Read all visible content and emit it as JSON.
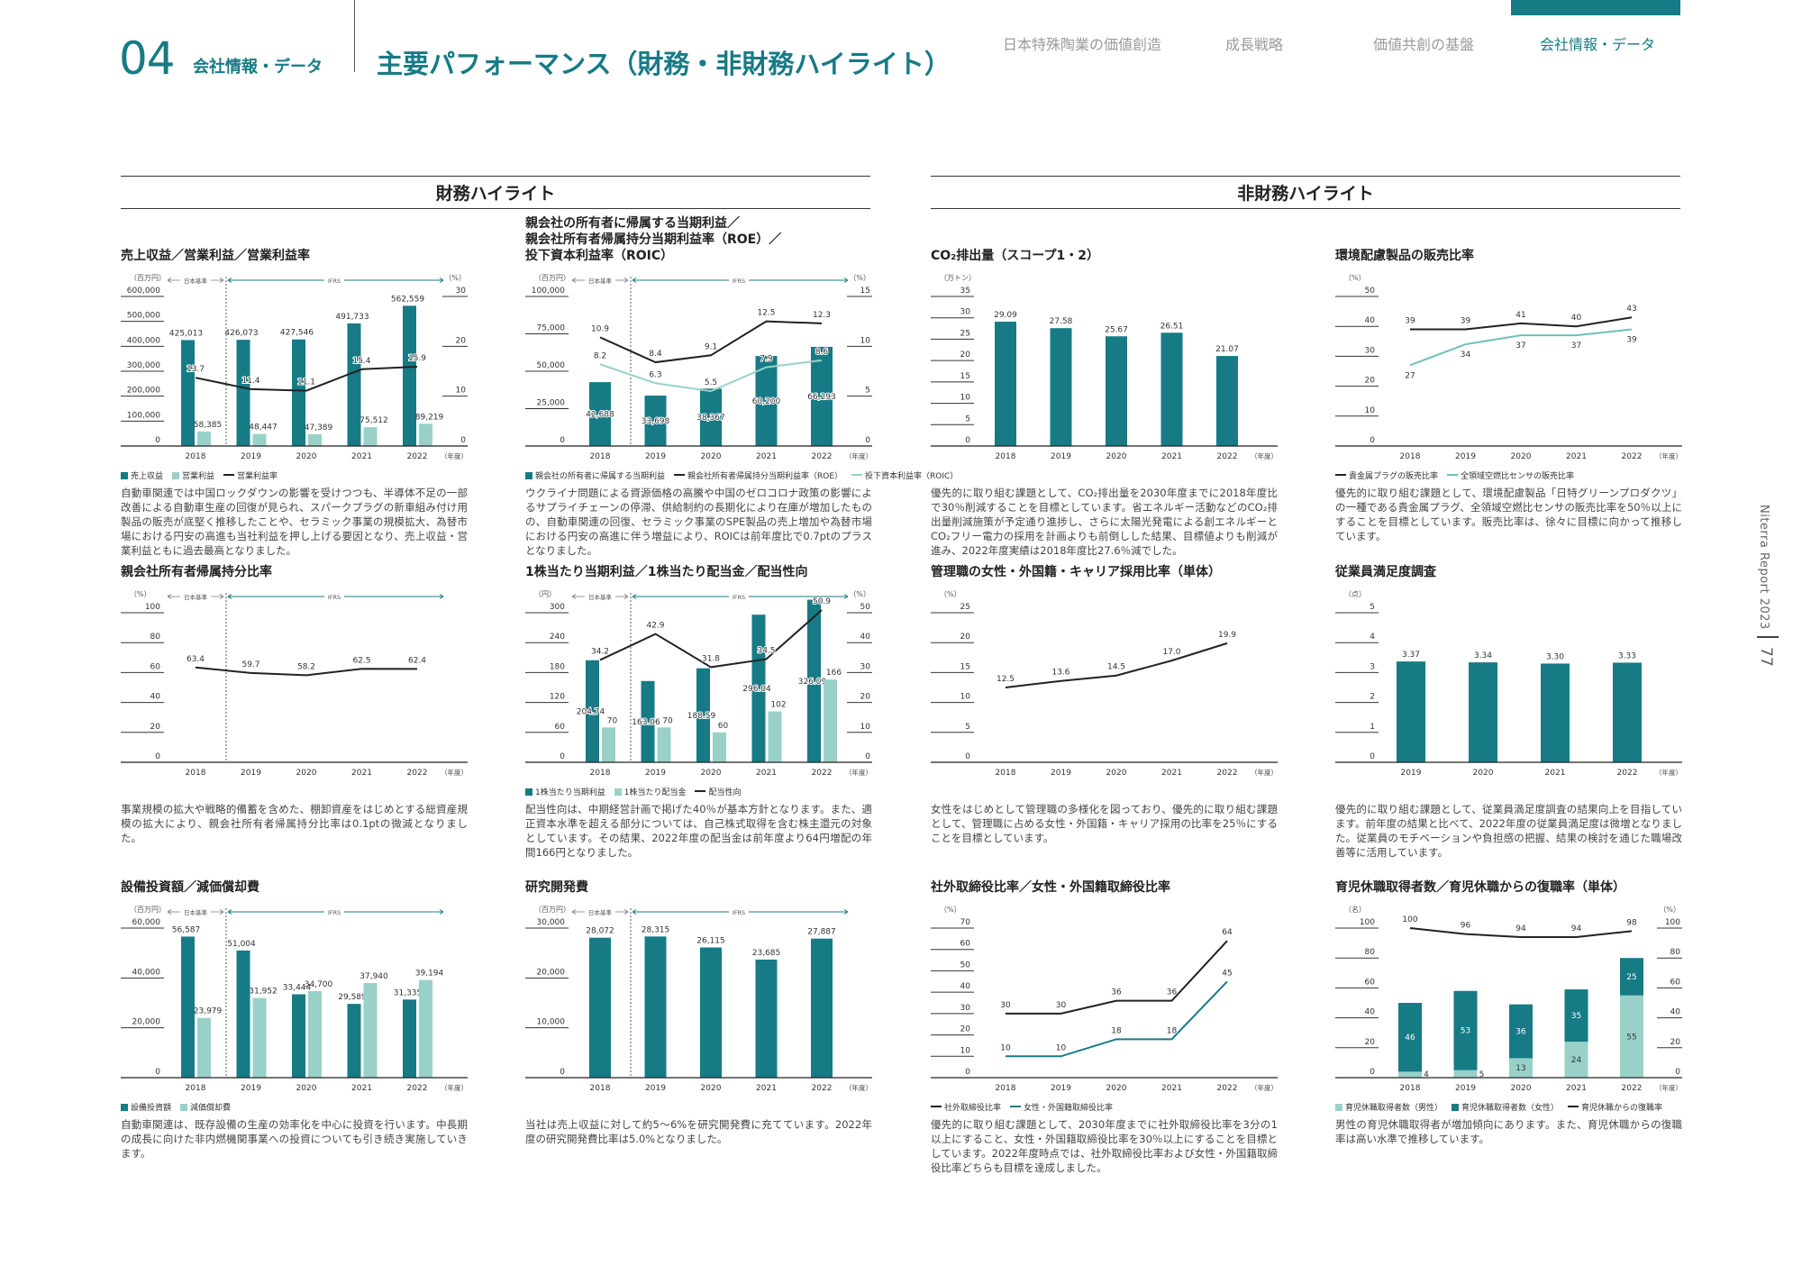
{
  "header": {
    "chapter_number": "04",
    "chapter_label": "会社情報・データ",
    "title": "主要パフォーマンス（財務・非財務ハイライト）"
  },
  "nav": {
    "items": [
      "日本特殊陶業の価値創造",
      "成長戦略",
      "価値共創の基盤",
      "会社情報・データ"
    ],
    "active_index": 3
  },
  "sections": {
    "financial": "財務ハイライト",
    "non_financial": "非財務ハイライト"
  },
  "side": {
    "report": "Niterra Report 2023",
    "page": "77"
  },
  "common": {
    "year_label": "（年度）",
    "jgaap": "日本基準",
    "ifrs": "IFRS"
  },
  "colors": {
    "teal": "#167b85",
    "light": "#99d1c9",
    "black": "#222222",
    "light_line": "#6cc0b5"
  },
  "chart_data": [
    {
      "type": "bar+line",
      "title": "売上収益／営業利益／営業利益率",
      "standards": true,
      "categories": [
        "2018",
        "2019",
        "2020",
        "2021",
        "2022"
      ],
      "left_axis": {
        "unit": "（百万円）",
        "max": 600000,
        "step": 100000
      },
      "right_axis": {
        "unit": "（%）",
        "max": 30,
        "step": 10
      },
      "series": [
        {
          "name": "売上収益",
          "type": "bar",
          "color": "teal",
          "axis": "left",
          "decimals": 0,
          "values": [
            425013,
            426073,
            427546,
            491733,
            562559
          ]
        },
        {
          "name": "営業利益",
          "type": "bar",
          "color": "light",
          "axis": "left",
          "decimals": 0,
          "values": [
            58385,
            48447,
            47389,
            75512,
            89219
          ]
        },
        {
          "name": "営業利益率",
          "type": "line",
          "color": "black",
          "axis": "right",
          "decimals": 1,
          "values": [
            13.7,
            11.4,
            11.1,
            15.4,
            15.9
          ]
        }
      ],
      "description": "自動車関連では中国ロックダウンの影響を受けつつも、半導体不足の一部改善による自動車生産の回復が見られ、スパークプラグの新車組み付け用製品の販売が底堅く推移したことや、セラミック事業の規模拡大、為替市場における円安の高進も当社利益を押し上げる要因となり、売上収益・営業利益ともに過去最高となりました。"
    },
    {
      "type": "bar+line",
      "title": "親会社の所有者に帰属する当期利益／\n親会社所有者帰属持分当期利益率（ROE）／\n投下資本利益率（ROIC）",
      "standards": true,
      "categories": [
        "2018",
        "2019",
        "2020",
        "2021",
        "2022"
      ],
      "left_axis": {
        "unit": "（百万円）",
        "max": 100000,
        "step": 25000
      },
      "right_axis": {
        "unit": "（%）",
        "max": 15,
        "step": 5
      },
      "series": [
        {
          "name": "親会社の所有者に帰属する当期利益",
          "type": "bar",
          "color": "teal",
          "axis": "left",
          "decimals": 0,
          "values": [
            42688,
            33698,
            38367,
            60200,
            66293
          ]
        },
        {
          "name": "親会社所有者帰属持分当期利益率（ROE）",
          "type": "line",
          "color": "black",
          "axis": "right",
          "decimals": 1,
          "values": [
            10.9,
            8.4,
            9.1,
            12.5,
            12.3
          ]
        },
        {
          "name": "投下資本利益率（ROIC）",
          "type": "line",
          "color": "light",
          "axis": "right",
          "decimals": 1,
          "values": [
            8.2,
            6.3,
            5.5,
            7.9,
            8.6
          ]
        }
      ],
      "description": "ウクライナ問題による資源価格の高騰や中国のゼロコロナ政策の影響によるサプライチェーンの停滞、供給制約の長期化により在庫が増加したものの、自動車関連の回復、セラミック事業のSPE製品の売上増加や為替市場における円安の高進に伴う増益により、ROICは前年度比で0.7ptのプラスとなりました。"
    },
    {
      "type": "bar",
      "title": "CO₂排出量（スコープ1・2）",
      "standards": false,
      "categories": [
        "2018",
        "2019",
        "2020",
        "2021",
        "2022"
      ],
      "left_axis": {
        "unit": "（万トン）",
        "max": 35,
        "step": 5
      },
      "series": [
        {
          "type": "bar",
          "color": "teal",
          "axis": "left",
          "decimals": 2,
          "values": [
            29.09,
            27.58,
            25.67,
            26.51,
            21.07
          ]
        }
      ],
      "description": "優先的に取り組む課題として、CO₂排出量を2030年度までに2018年度比で30％削減することを目標としています。省エネルギー活動などのCO₂排出量削減施策が予定通り進捗し、さらに太陽光発電による創エネルギーとCO₂フリー電力の採用を計画よりも前倒しした結果、目標値よりも削減が進み、2022年度実績は2018年度比27.6％減でした。"
    },
    {
      "type": "line",
      "title": "環境配慮製品の販売比率",
      "standards": false,
      "categories": [
        "2018",
        "2019",
        "2020",
        "2021",
        "2022"
      ],
      "left_axis": {
        "unit": "（%）",
        "max": 50,
        "step": 10
      },
      "series": [
        {
          "name": "貴金属プラグの販売比率",
          "type": "line",
          "color": "black",
          "axis": "left",
          "decimals": 0,
          "values": [
            39,
            39,
            41,
            40,
            43
          ]
        },
        {
          "name": "全領域空燃比センサの販売比率",
          "type": "line",
          "color": "light_line",
          "axis": "left",
          "decimals": 0,
          "values": [
            27,
            34,
            37,
            37,
            39
          ]
        }
      ],
      "description": "優先的に取り組む課題として、環境配慮製品「日特グリーンプロダクツ」の一種である貴金属プラグ、全領域空燃比センサの販売比率を50％以上にすることを目標としています。販売比率は、徐々に目標に向かって推移しています。"
    },
    {
      "type": "line",
      "title": "親会社所有者帰属持分比率",
      "standards": true,
      "categories": [
        "2018",
        "2019",
        "2020",
        "2021",
        "2022"
      ],
      "left_axis": {
        "unit": "（%）",
        "max": 100,
        "step": 20
      },
      "series": [
        {
          "type": "line",
          "color": "black",
          "axis": "left",
          "decimals": 1,
          "values": [
            63.4,
            59.7,
            58.2,
            62.5,
            62.4
          ]
        }
      ],
      "description": "事業規模の拡大や戦略的備蓄を含めた、棚卸資産をはじめとする総資産規模の拡大により、親会社所有者帰属持分比率は0.1ptの微減となりました。"
    },
    {
      "type": "bar+line",
      "title": "1株当たり当期利益／1株当たり配当金／配当性向",
      "standards": true,
      "categories": [
        "2018",
        "2019",
        "2020",
        "2021",
        "2022"
      ],
      "left_axis": {
        "unit": "（円）",
        "max": 300,
        "step": 60
      },
      "right_axis": {
        "unit": "（%）",
        "max": 50,
        "step": 10
      },
      "series": [
        {
          "name": "1株当たり当期利益",
          "type": "bar",
          "color": "teal",
          "axis": "left",
          "decimals": 2,
          "values": [
            204.74,
            163.06,
            188.59,
            296.04,
            326.09
          ]
        },
        {
          "name": "1株当たり配当金",
          "type": "bar",
          "color": "light",
          "axis": "left",
          "decimals": 0,
          "values": [
            70,
            70,
            60,
            102,
            166
          ]
        },
        {
          "name": "配当性向",
          "type": "line",
          "color": "black",
          "axis": "right",
          "decimals": 1,
          "values": [
            34.2,
            42.9,
            31.8,
            34.5,
            50.9
          ]
        }
      ],
      "description": "配当性向は、中期経営計画で掲げた40％が基本方針となります。また、適正資本水準を超える部分については、自己株式取得を含む株主還元の対象としています。その結果、2022年度の配当金は前年度より64円増配の年間166円となりました。"
    },
    {
      "type": "line",
      "title": "管理職の女性・外国籍・キャリア採用比率（単体）",
      "standards": false,
      "categories": [
        "2018",
        "2019",
        "2020",
        "2021",
        "2022"
      ],
      "left_axis": {
        "unit": "（%）",
        "max": 25,
        "step": 5
      },
      "series": [
        {
          "type": "line",
          "color": "black",
          "axis": "left",
          "decimals": 1,
          "values": [
            12.5,
            13.6,
            14.5,
            17.0,
            19.9
          ]
        }
      ],
      "description": "女性をはじめとして管理職の多様化を図っており、優先的に取り組む課題として、管理職に占める女性・外国籍・キャリア採用の比率を25％にすることを目標としています。"
    },
    {
      "type": "bar",
      "title": "従業員満足度調査",
      "standards": false,
      "categories": [
        "2019",
        "2020",
        "2021",
        "2022"
      ],
      "left_axis": {
        "unit": "（点）",
        "max": 5,
        "step": 1
      },
      "series": [
        {
          "type": "bar",
          "color": "teal",
          "axis": "left",
          "decimals": 2,
          "values": [
            3.37,
            3.34,
            3.3,
            3.33
          ]
        }
      ],
      "description": "優先的に取り組む課題として、従業員満足度調査の結果向上を目指しています。前年度の結果と比べて、2022年度の従業員満足度は微増となりました。従業員のモチベーションや負担感の把握、結果の検討を通じた職場改善等に活用しています。"
    },
    {
      "type": "bar",
      "title": "設備投資額／減価償却費",
      "standards": true,
      "categories": [
        "2018",
        "2019",
        "2020",
        "2021",
        "2022"
      ],
      "left_axis": {
        "unit": "（百万円）",
        "max": 60000,
        "step": 20000
      },
      "series": [
        {
          "name": "設備投資額",
          "type": "bar",
          "color": "teal",
          "axis": "left",
          "decimals": 0,
          "values": [
            56587,
            51004,
            33444,
            29589,
            31335
          ]
        },
        {
          "name": "減価償却費",
          "type": "bar",
          "color": "light",
          "axis": "left",
          "decimals": 0,
          "values": [
            23979,
            31952,
            34700,
            37940,
            39194
          ]
        }
      ],
      "description": "自動車関連は、既存設備の生産の効率化を中心に投資を行います。中長期の成長に向けた非内燃機関事業への投資についても引き続き実施していきます。"
    },
    {
      "type": "bar",
      "title": "研究開発費",
      "standards": true,
      "categories": [
        "2018",
        "2019",
        "2020",
        "2021",
        "2022"
      ],
      "left_axis": {
        "unit": "（百万円）",
        "max": 30000,
        "step": 10000
      },
      "series": [
        {
          "type": "bar",
          "color": "teal",
          "axis": "left",
          "decimals": 0,
          "values": [
            28072,
            28315,
            26115,
            23685,
            27887
          ]
        }
      ],
      "description": "当社は売上収益に対して約5～6%を研究開発費に充てています。2022年度の研究開発費比率は5.0%となりました。"
    },
    {
      "type": "line",
      "title": "社外取締役比率／女性・外国籍取締役比率",
      "standards": false,
      "categories": [
        "2018",
        "2019",
        "2020",
        "2021",
        "2022"
      ],
      "left_axis": {
        "unit": "（%）",
        "max": 70,
        "step": 10
      },
      "series": [
        {
          "name": "社外取締役比率",
          "type": "line",
          "color": "black",
          "axis": "left",
          "decimals": 0,
          "values": [
            30,
            30,
            36,
            36,
            64
          ]
        },
        {
          "name": "女性・外国籍取締役比率",
          "type": "line",
          "color": "teal",
          "axis": "left",
          "decimals": 0,
          "values": [
            10,
            10,
            18,
            18,
            45
          ]
        }
      ],
      "description": "優先的に取り組む課題として、2030年度までに社外取締役比率を3分の1以上にすること、女性・外国籍取締役比率を30％以上にすることを目標としています。2022年度時点では、社外取締役比率および女性・外国籍取締役比率どちらも目標を達成しました。"
    },
    {
      "type": "stacked-bar+line",
      "title": "育児休職取得者数／育児休職からの復職率（単体）",
      "standards": false,
      "stacked": true,
      "categories": [
        "2018",
        "2019",
        "2020",
        "2021",
        "2022"
      ],
      "left_axis": {
        "unit": "（名）",
        "max": 100,
        "step": 20
      },
      "right_axis": {
        "unit": "（%）",
        "max": 100,
        "step": 20
      },
      "series": [
        {
          "name": "育児休職取得者数（男性）",
          "type": "bar",
          "color": "light",
          "axis": "left",
          "decimals": 0,
          "values": [
            4,
            5,
            13,
            24,
            55
          ]
        },
        {
          "name": "育児休職取得者数（女性）",
          "type": "bar",
          "color": "teal",
          "axis": "left",
          "decimals": 0,
          "values": [
            46,
            53,
            36,
            35,
            25
          ]
        },
        {
          "name": "育児休職からの復職率",
          "type": "line",
          "color": "black",
          "axis": "right",
          "decimals": 0,
          "values": [
            100,
            96,
            94,
            94,
            98
          ]
        }
      ],
      "description": "男性の育児休職取得者が増加傾向にあります。また、育児休職からの復職率は高い水準で推移しています。"
    }
  ]
}
